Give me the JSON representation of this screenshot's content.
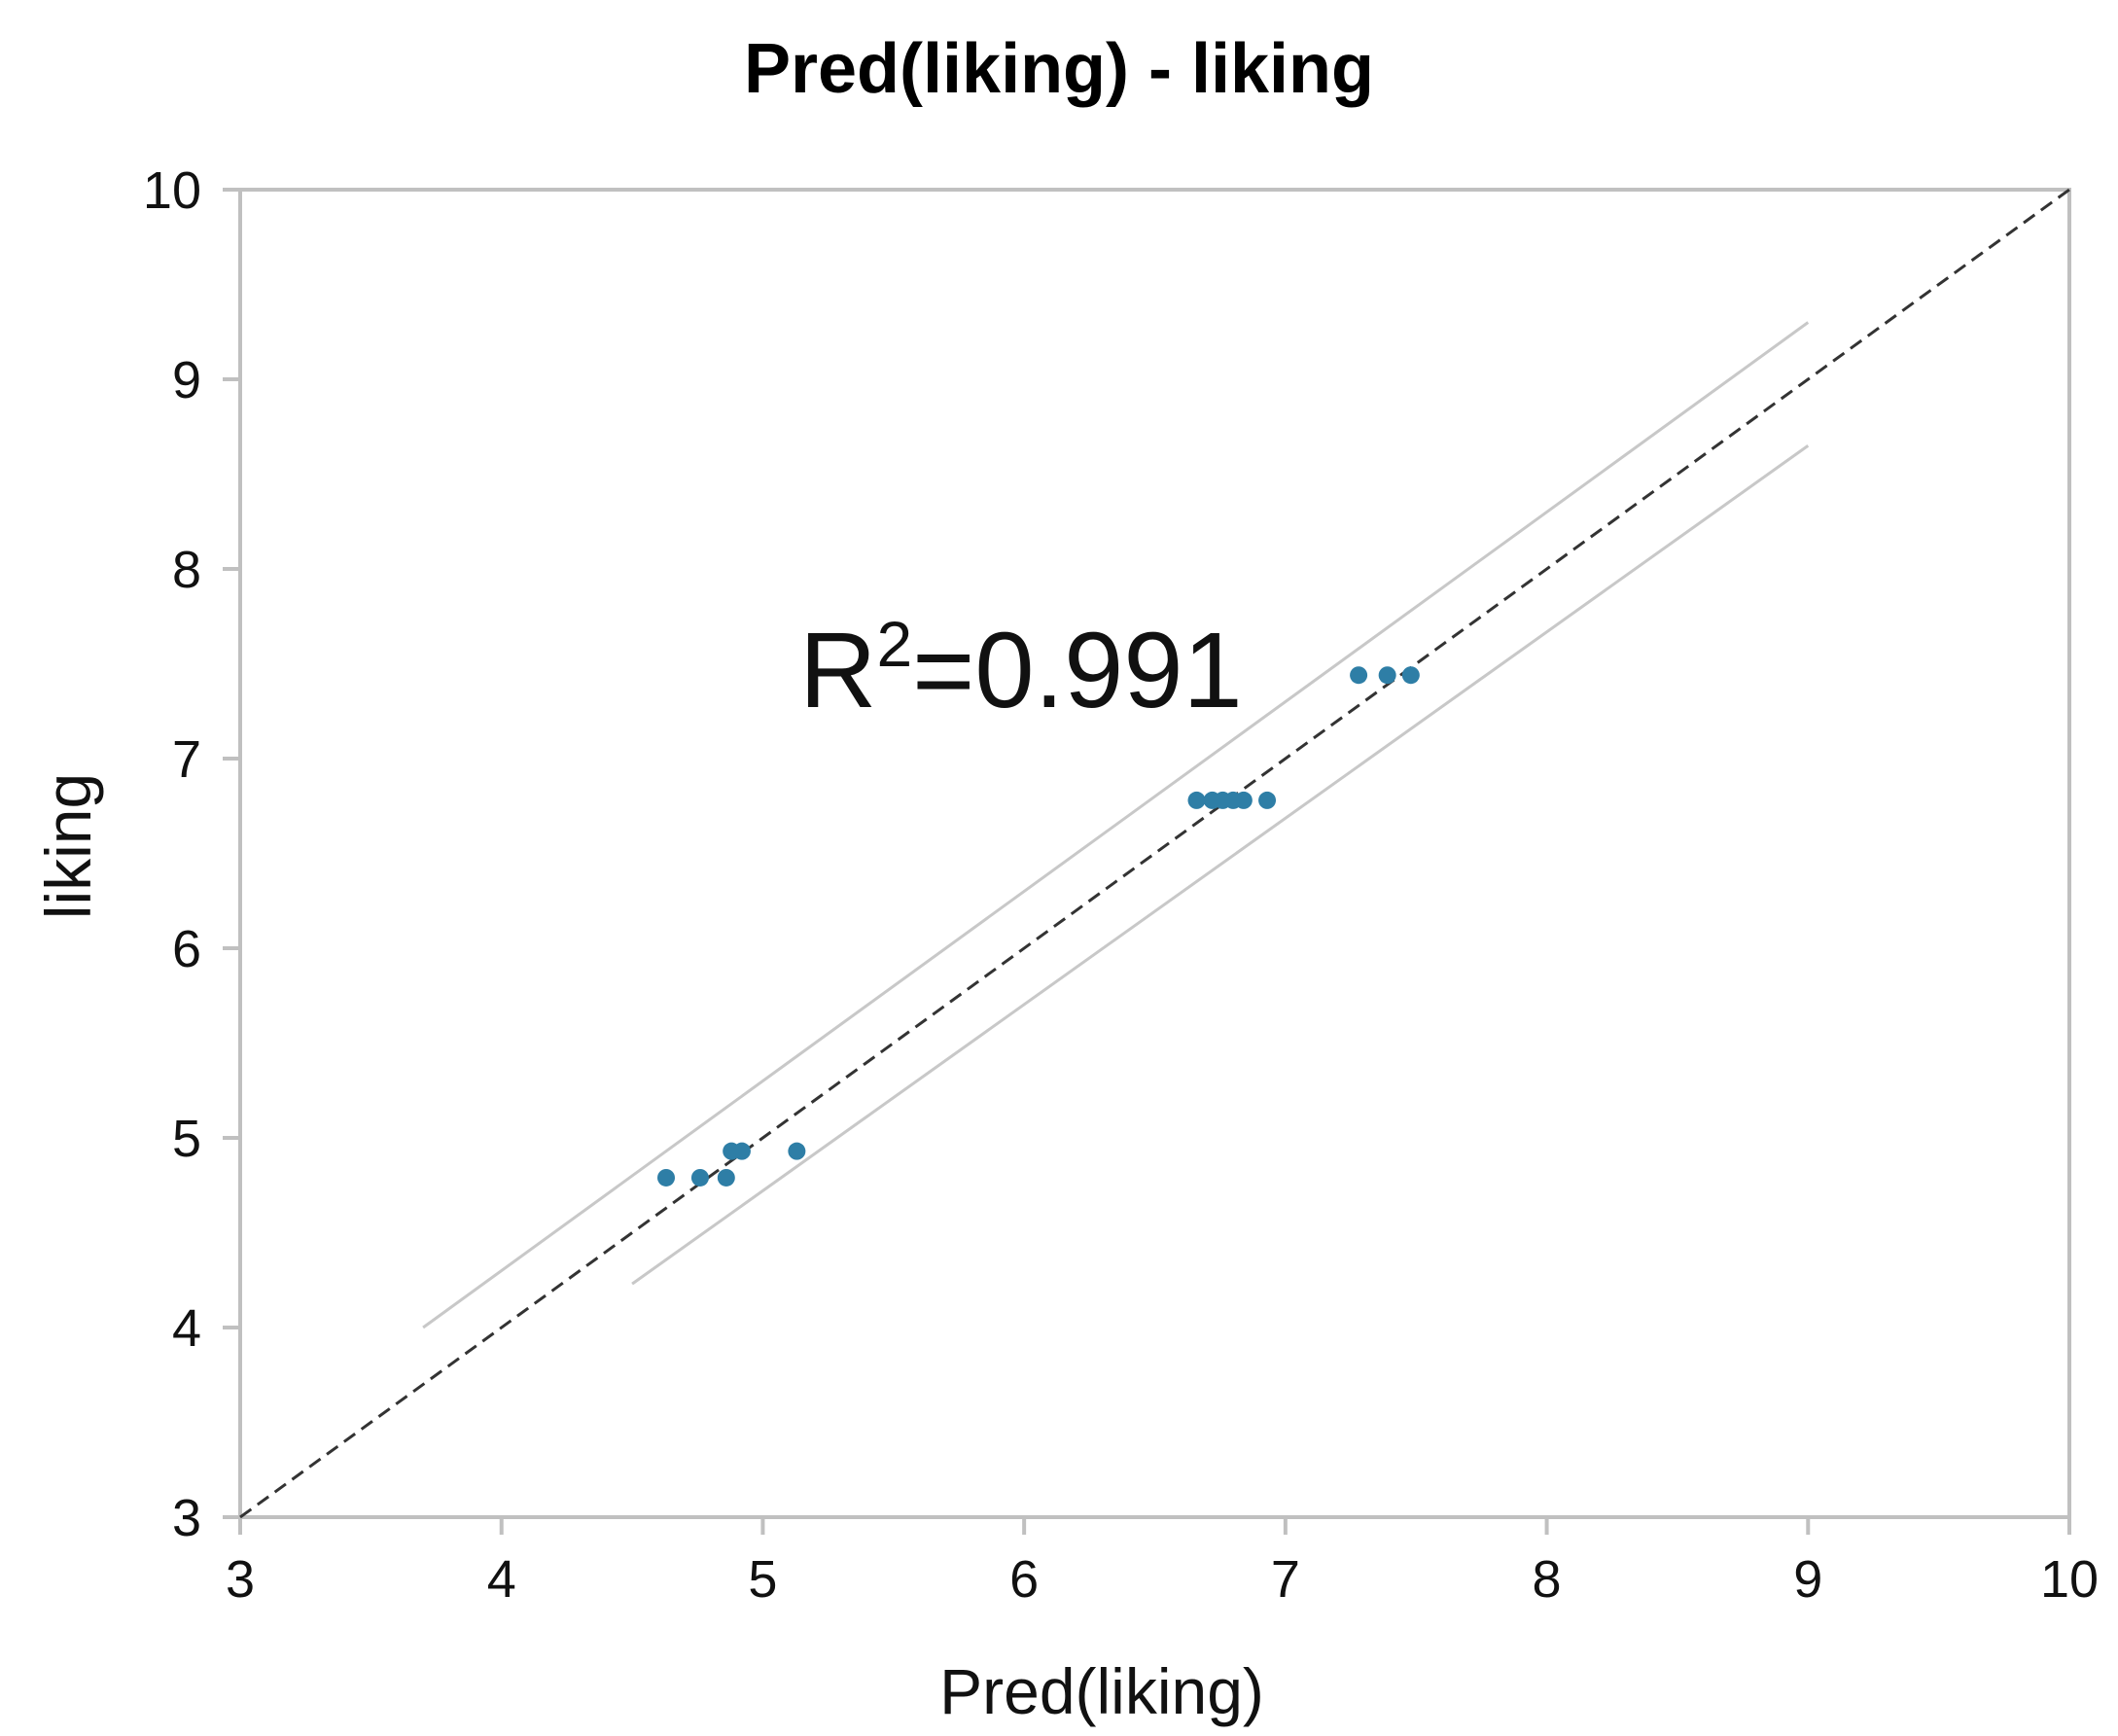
{
  "chart_data": {
    "type": "scatter",
    "title": "Pred(liking) - liking",
    "xlabel": "Pred(liking)",
    "ylabel": "liking",
    "xlim": [
      3,
      10
    ],
    "ylim": [
      3,
      10
    ],
    "xticks": [
      "3",
      "4",
      "5",
      "6",
      "7",
      "8",
      "9",
      "10"
    ],
    "yticks": [
      "3",
      "4",
      "5",
      "6",
      "7",
      "8",
      "9",
      "10"
    ],
    "grid": false,
    "annotation": {
      "base": "R",
      "sup": "2",
      "rest": "=0.991"
    },
    "points": [
      {
        "x": 4.63,
        "y": 4.79
      },
      {
        "x": 4.76,
        "y": 4.79
      },
      {
        "x": 4.86,
        "y": 4.79
      },
      {
        "x": 4.88,
        "y": 4.93
      },
      {
        "x": 4.92,
        "y": 4.93
      },
      {
        "x": 5.13,
        "y": 4.93
      },
      {
        "x": 6.66,
        "y": 6.78
      },
      {
        "x": 6.72,
        "y": 6.78
      },
      {
        "x": 6.76,
        "y": 6.78
      },
      {
        "x": 6.8,
        "y": 6.78
      },
      {
        "x": 6.84,
        "y": 6.78
      },
      {
        "x": 6.93,
        "y": 6.78
      },
      {
        "x": 7.28,
        "y": 7.44
      },
      {
        "x": 7.39,
        "y": 7.44
      },
      {
        "x": 7.48,
        "y": 7.44
      }
    ],
    "reference_line": {
      "x": [
        3,
        10
      ],
      "y": [
        3,
        10
      ],
      "style": "dashed"
    },
    "confidence_bands": [
      {
        "x": [
          3.7,
          9.0
        ],
        "y": [
          4.0,
          9.3
        ]
      },
      {
        "x": [
          4.5,
          9.0
        ],
        "y": [
          4.23,
          8.65
        ]
      }
    ],
    "colors": {
      "points": "#2e7ea6",
      "reference_line": "#333333",
      "bands": "#c8c8c8",
      "axes": "#c0c0c0"
    }
  }
}
